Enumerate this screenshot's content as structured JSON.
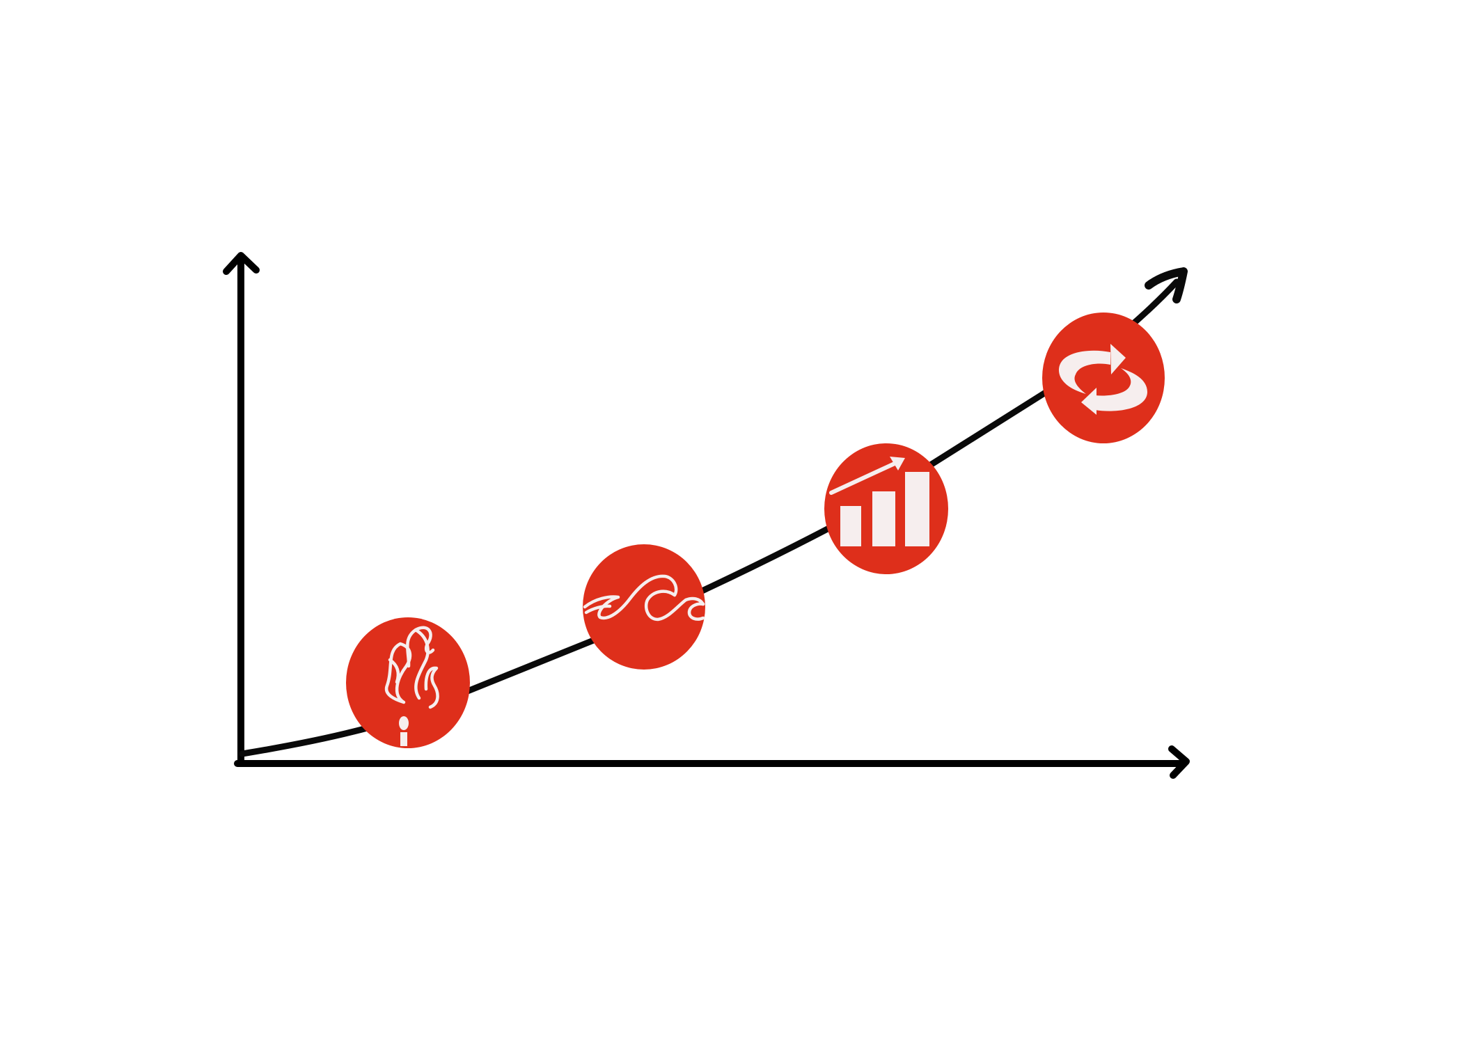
{
  "colors": {
    "background": "#ffffff",
    "axis": "#000000",
    "curve": "#0a0a0a",
    "badge_fill": "#de2f1b",
    "icon_fill": "#f6eeee"
  },
  "milestones": [
    {
      "icon": "flame-icon"
    },
    {
      "icon": "wave-icon"
    },
    {
      "icon": "bar-growth-icon"
    },
    {
      "icon": "cycle-arrows-icon"
    }
  ]
}
